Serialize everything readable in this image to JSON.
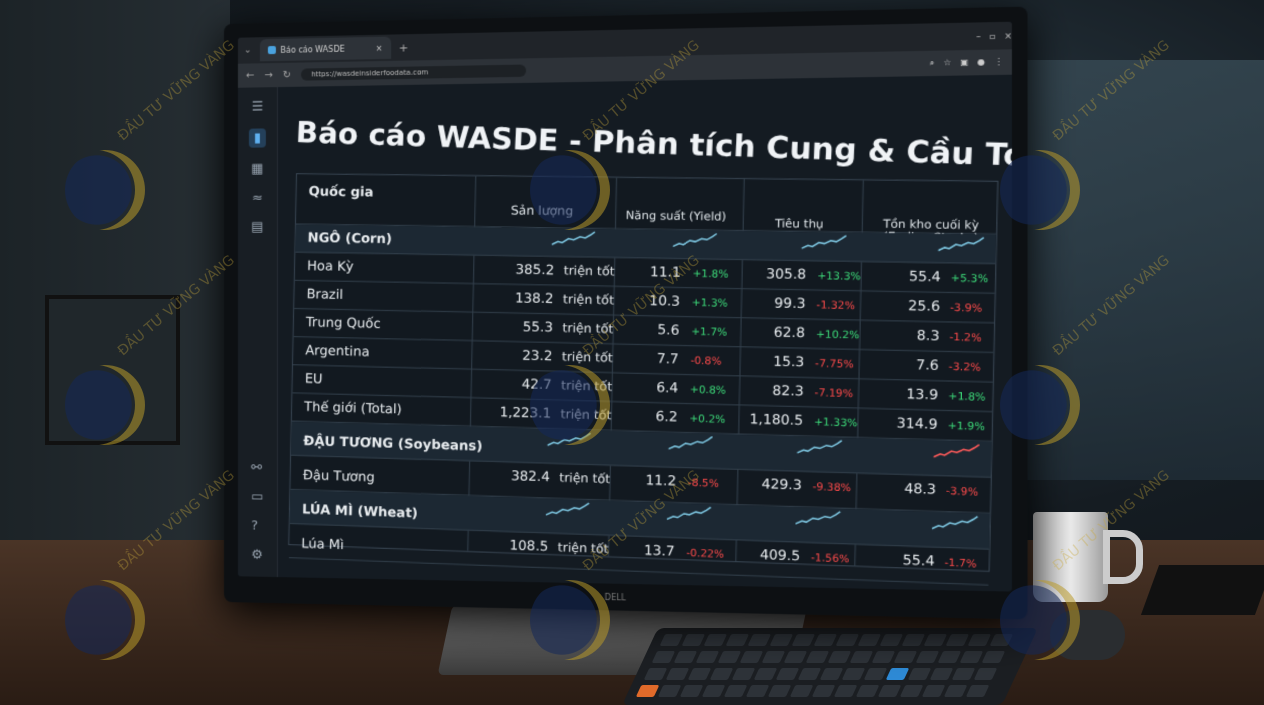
{
  "browser": {
    "tab_title": "Báo cáo WASDE",
    "url": "https://wasdeinsiderfoodata.com"
  },
  "page": {
    "title": "Báo cáo WASDE - Phân tích Cung & Cầu Toàn cầu"
  },
  "table": {
    "headers": {
      "country": "Quốc gia",
      "production": "Sản lượng",
      "yield": "Năng suất (Yield)",
      "consumption": "Tiêu thụ",
      "stocks": "Tồn kho cuối kỳ (Ending Stocks)"
    },
    "sections": [
      {
        "label": "NGÔ (Corn)",
        "rows": [
          {
            "country": "Hoa Kỳ",
            "production": "385.2",
            "unit": "triện tốt",
            "yield": "11.1",
            "yield_change": "+1.8%",
            "consumption": "305.8",
            "consumption_change": "+13.3%",
            "stocks": "55.4",
            "stocks_change": "+5.3%"
          },
          {
            "country": "Brazil",
            "production": "138.2",
            "unit": "triện tốt",
            "yield": "10.3",
            "yield_change": "+1.3%",
            "consumption": "99.3",
            "consumption_change": "-1.32%",
            "stocks": "25.6",
            "stocks_change": "-3.9%"
          },
          {
            "country": "Trung Quốc",
            "production": "55.3",
            "unit": "triện tốt",
            "yield": "5.6",
            "yield_change": "+1.7%",
            "consumption": "62.8",
            "consumption_change": "+10.2%",
            "stocks": "8.3",
            "stocks_change": "-1.2%"
          },
          {
            "country": "Argentina",
            "production": "23.2",
            "unit": "triện tốt",
            "yield": "7.7",
            "yield_change": "-0.8%",
            "consumption": "15.3",
            "consumption_change": "-7.75%",
            "stocks": "7.6",
            "stocks_change": "-3.2%"
          },
          {
            "country": "EU",
            "production": "42.7",
            "unit": "triện tốt",
            "yield": "6.4",
            "yield_change": "+0.8%",
            "consumption": "82.3",
            "consumption_change": "-7.19%",
            "stocks": "13.9",
            "stocks_change": "+1.8%"
          },
          {
            "country": "Thế giới (Total)",
            "production": "1,223.1",
            "unit": "triện tốt",
            "yield": "6.2",
            "yield_change": "+0.2%",
            "consumption": "1,180.5",
            "consumption_change": "+1.33%",
            "stocks": "314.9",
            "stocks_change": "+1.9%"
          }
        ]
      },
      {
        "label": "ĐẬU TƯƠNG (Soybeans)",
        "rows": [
          {
            "country": "Đậu Tương",
            "production": "382.4",
            "unit": "triện tốt",
            "yield": "11.2",
            "yield_change": "-8.5%",
            "consumption": "429.3",
            "consumption_change": "-9.38%",
            "stocks": "48.3",
            "stocks_change": "-3.9%"
          }
        ]
      },
      {
        "label": "LÚA MÌ (Wheat)",
        "rows": [
          {
            "country": "Lúa Mì",
            "production": "108.5",
            "unit": "triện tốt",
            "yield": "13.7",
            "yield_change": "-0.22%",
            "consumption": "409.5",
            "consumption_change": "-1.56%",
            "stocks": "55.4",
            "stocks_change": "-1.7%"
          }
        ]
      }
    ]
  },
  "colors": {
    "up": "#3ddc7a",
    "down": "#ff4b4b",
    "spark": "#7ec8e3",
    "spark_alt": "#ff5a5a"
  },
  "watermark": "ĐẦU TƯ VỮNG VÀNG",
  "monitor_brand": "DELL"
}
